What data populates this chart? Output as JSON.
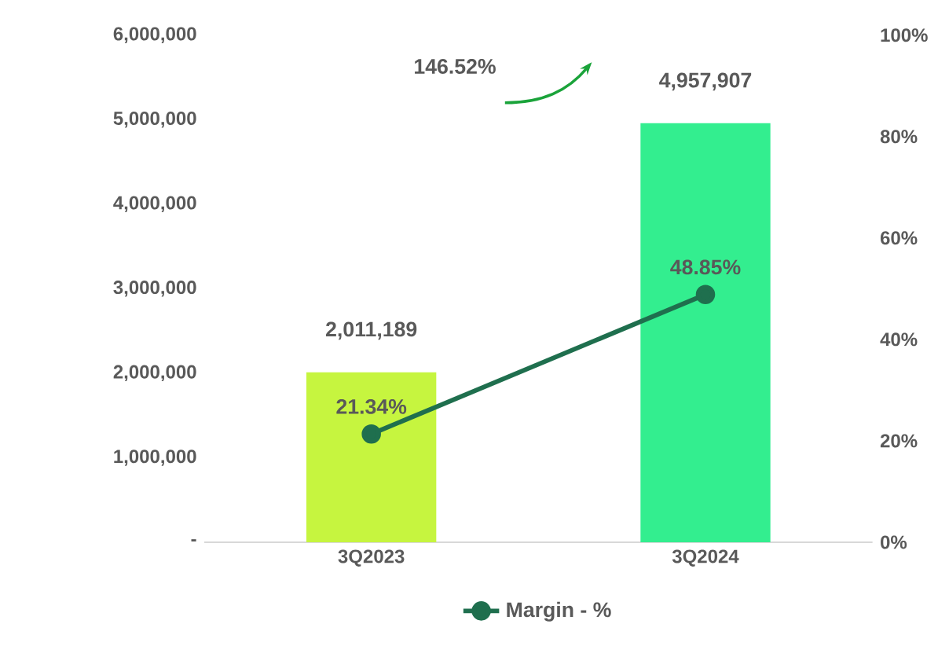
{
  "chart_data": {
    "type": "bar",
    "categories": [
      "3Q2023",
      "3Q2024"
    ],
    "series": [
      {
        "colors": [
          "#c6f53f",
          "#33ee8f"
        ],
        "values": [
          2011189,
          4957907
        ],
        "value_labels": [
          "2,011,189",
          "4,957,907"
        ]
      },
      {
        "type": "line",
        "name": "Margin - %",
        "color": "#1f6f4e",
        "axis": "y2",
        "marker": "circle",
        "values": [
          21.34,
          48.85
        ],
        "value_labels": [
          "21.34%",
          "48.85%"
        ]
      }
    ],
    "ylim": [
      0,
      6000000
    ],
    "yticks": [
      {
        "value": 0,
        "label": "-"
      },
      {
        "value": 1000000,
        "label": "1,000,000"
      },
      {
        "value": 2000000,
        "label": "2,000,000"
      },
      {
        "value": 3000000,
        "label": "3,000,000"
      },
      {
        "value": 4000000,
        "label": "4,000,000"
      },
      {
        "value": 5000000,
        "label": "5,000,000"
      },
      {
        "value": 6000000,
        "label": "6,000,000"
      }
    ],
    "y2lim": [
      0,
      100
    ],
    "y2ticks": [
      {
        "value": 0,
        "label": "0%"
      },
      {
        "value": 20,
        "label": "20%"
      },
      {
        "value": 40,
        "label": "40%"
      },
      {
        "value": 60,
        "label": "60%"
      },
      {
        "value": 80,
        "label": "80%"
      },
      {
        "value": 100,
        "label": "100%"
      }
    ],
    "annotations": [
      "146.52%"
    ],
    "legend": "bottom",
    "grid": false
  }
}
